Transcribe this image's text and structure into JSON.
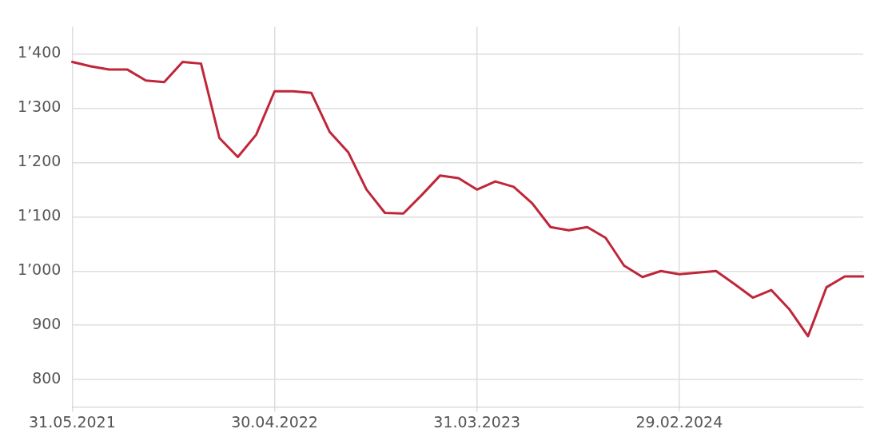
{
  "chart_data": {
    "type": "line",
    "categories": [
      "31.05.2021",
      null,
      null,
      null,
      null,
      null,
      null,
      null,
      null,
      null,
      null,
      "30.04.2022",
      null,
      null,
      null,
      null,
      null,
      null,
      null,
      null,
      null,
      null,
      "31.03.2023",
      null,
      null,
      null,
      null,
      null,
      null,
      null,
      null,
      null,
      null,
      "29.02.2024",
      null,
      null,
      null,
      null,
      null,
      null,
      null,
      null,
      null,
      null
    ],
    "series": [
      {
        "color": "#c0263a",
        "values": [
          1385,
          1377,
          1371,
          1371,
          1351,
          1348,
          1385,
          1382,
          1245,
          1210,
          1251,
          1331,
          1331,
          1328,
          1256,
          1219,
          1150,
          1107,
          1106,
          1140,
          1176,
          1171,
          1150,
          1165,
          1155,
          1125,
          1081,
          1075,
          1081,
          1061,
          1010,
          989,
          1000,
          994,
          997,
          1000,
          976,
          951,
          965,
          929,
          880,
          970,
          990,
          990
        ]
      }
    ],
    "ylim": [
      750,
      1450
    ],
    "yticks": [
      {
        "value": 800,
        "label": "800"
      },
      {
        "value": 900,
        "label": "900"
      },
      {
        "value": 1000,
        "label": "1’000"
      },
      {
        "value": 1100,
        "label": "1’100"
      },
      {
        "value": 1200,
        "label": "1’200"
      },
      {
        "value": 1300,
        "label": "1’300"
      },
      {
        "value": 1400,
        "label": "1’400"
      }
    ],
    "grid": true,
    "legend": false,
    "marker": "none",
    "line_style": "solid"
  }
}
